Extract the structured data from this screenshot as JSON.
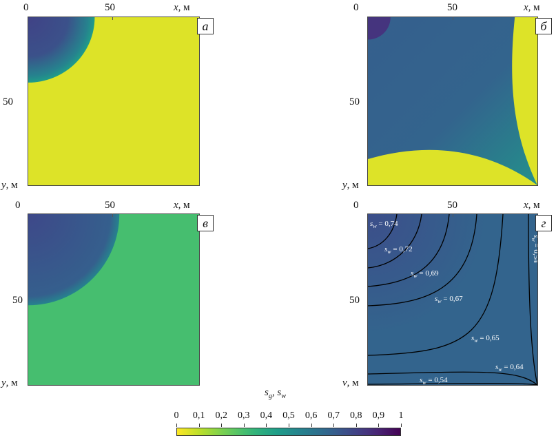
{
  "chart_data": {
    "type": "heatmap",
    "colorbar": {
      "title_main": "s",
      "title_sub1": "g",
      "title_sep": ", s",
      "title_sub2": "w",
      "ticks": [
        "0",
        "0,1",
        "0,2",
        "0,3",
        "0,4",
        "0,5",
        "0,6",
        "0,7",
        "0,8",
        "0,9",
        "1"
      ],
      "range": [
        0,
        1
      ],
      "colormap": "viridis_reversed"
    },
    "panels": [
      {
        "label": "а",
        "x_axis": {
          "name": "x",
          "unit": ", м",
          "ticks": [
            "0",
            "50"
          ],
          "tick_values": [
            0,
            50
          ],
          "range": [
            0,
            90
          ]
        },
        "y_axis": {
          "name": "y",
          "unit": ", м",
          "ticks": [
            "50"
          ],
          "tick_values": [
            50
          ],
          "range": [
            0,
            90
          ]
        },
        "background_value": 0.05,
        "region": {
          "shape": "circle",
          "center": [
            0,
            0
          ],
          "radius_m": 35,
          "inner_value": 0.8,
          "edge_value": 0.55
        }
      },
      {
        "label": "б",
        "x_axis": {
          "name": "x",
          "unit": ", м",
          "ticks": [
            "0",
            "50"
          ],
          "tick_values": [
            0,
            50
          ],
          "range": [
            0,
            90
          ]
        },
        "y_axis": {
          "name": "y",
          "unit": ", м",
          "ticks": [
            "50"
          ],
          "tick_values": [
            50
          ],
          "range": [
            0,
            90
          ]
        },
        "background_value": 0.05,
        "region": {
          "shape": "front",
          "core_radius_m": 12,
          "core_value": 0.85,
          "plateau_value": 0.7,
          "front_value": 0.5,
          "front_x_m": 78,
          "front_y_m": 76
        }
      },
      {
        "label": "в",
        "x_axis": {
          "name": "x",
          "unit": ", м",
          "ticks": [
            "0",
            "50"
          ],
          "tick_values": [
            0,
            50
          ],
          "range": [
            0,
            90
          ]
        },
        "y_axis": {
          "name": "y",
          "unit": ", м",
          "ticks": [
            "50"
          ],
          "tick_values": [
            50
          ],
          "range": [
            0,
            90
          ]
        },
        "background_value": 0.3,
        "region": {
          "shape": "circle",
          "center": [
            0,
            0
          ],
          "radius_m": 48,
          "inner_value": 0.78,
          "edge_value": 0.7
        }
      },
      {
        "label": "г",
        "x_axis": {
          "name": "x",
          "unit": ", м",
          "ticks": [
            "0",
            "50"
          ],
          "tick_values": [
            0,
            50
          ],
          "range": [
            0,
            90
          ]
        },
        "y_axis": {
          "name": "v",
          "unit": ", м",
          "ticks": [
            "50"
          ],
          "tick_values": [
            50
          ],
          "range": [
            0,
            90
          ]
        },
        "background_value": 0.68,
        "contours": [
          {
            "label": "s_w = 0,74",
            "value": 0.74
          },
          {
            "label": "s_w = 0,72",
            "value": 0.72
          },
          {
            "label": "s_w = 0,69",
            "value": 0.69
          },
          {
            "label": "s_w = 0,67",
            "value": 0.67
          },
          {
            "label": "s_w = 0,65",
            "value": 0.65
          },
          {
            "label": "s_w = 0,64",
            "value": 0.64
          },
          {
            "label": "s_w = 0,54",
            "value": 0.54
          },
          {
            "label": "s_w = 0,54",
            "value": 0.54
          }
        ]
      }
    ]
  }
}
